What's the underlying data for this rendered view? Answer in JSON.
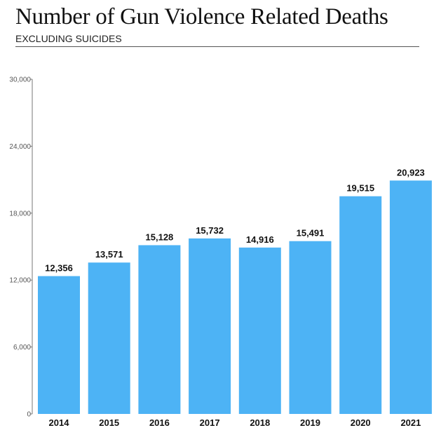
{
  "chart_data": {
    "type": "bar",
    "title": "Number of Gun Violence Related Deaths",
    "subtitle": "EXCLUDING SUICIDES",
    "categories": [
      "2014",
      "2015",
      "2016",
      "2017",
      "2018",
      "2019",
      "2020",
      "2021"
    ],
    "values": [
      12356,
      13571,
      15128,
      15732,
      14916,
      15491,
      19515,
      20923
    ],
    "value_labels": [
      "12,356",
      "13,571",
      "15,128",
      "15,732",
      "14,916",
      "15,491",
      "19,515",
      "20,923"
    ],
    "ylim": [
      0,
      30000
    ],
    "yticks": [
      0,
      6000,
      12000,
      18000,
      24000,
      30000
    ],
    "ytick_labels": [
      "0",
      "6,000",
      "12,000",
      "18,000",
      "24,000",
      "30,000"
    ],
    "xlabel": "",
    "ylabel": "",
    "grid": false,
    "bar_color": "#4DB3F5"
  }
}
